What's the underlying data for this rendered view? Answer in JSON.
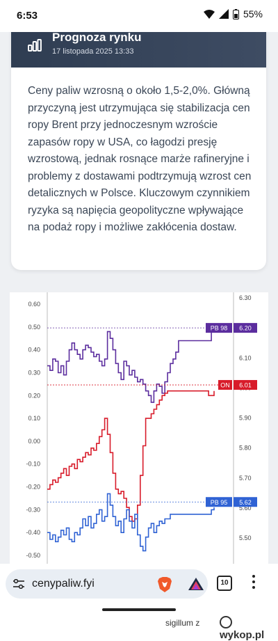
{
  "status_bar": {
    "time": "6:53",
    "battery": "55%"
  },
  "card": {
    "title": "Prognoza rynku",
    "date": "17 listopada 2025 13:33",
    "body": "Ceny paliw wzrosną o około 1,5-2,0%. Główną przyczyną jest utrzymująca się stabilizacja cen ropy Brent przy jednoczesnym wzroście zapasów ropy w USA, co łagodzi presję wzrostową, jednak rosnące marże rafineryjne i problemy z dostawami podtrzymują wzrost cen detalicznych w Polsce. Kluczowym czynnikiem ryzyka są napięcia geopolityczne wpływające na podaż ropy i możliwe zakłócenia dostaw."
  },
  "chart_data": {
    "type": "line",
    "title": "",
    "left_axis": {
      "ticks": [
        "0.60",
        "0.50",
        "0.40",
        "0.30",
        "0.20",
        "0.10",
        "0.00",
        "-0.10",
        "-0.20",
        "-0.30",
        "-0.40",
        "-0.50"
      ],
      "range": [
        -0.55,
        0.62
      ]
    },
    "right_axis": {
      "ticks": [
        "6.30",
        "6.20",
        "6.10",
        "6.00",
        "5.90",
        "5.80",
        "5.70",
        "5.60",
        "5.50"
      ],
      "range": [
        5.43,
        6.3
      ]
    },
    "grid": false,
    "series": [
      {
        "name": "PB 98",
        "current_value": "6.20",
        "color": "#5b2d9e",
        "values": [
          0.33,
          0.31,
          0.36,
          0.35,
          0.3,
          0.33,
          0.29,
          0.35,
          0.4,
          0.43,
          0.4,
          0.38,
          0.36,
          0.4,
          0.42,
          0.41,
          0.39,
          0.37,
          0.38,
          0.35,
          0.33,
          0.36,
          0.48,
          0.45,
          0.4,
          0.34,
          0.3,
          0.27,
          0.35,
          0.33,
          0.29,
          0.31,
          0.28,
          0.26,
          0.27,
          0.25,
          0.22,
          0.2,
          0.17,
          0.22,
          0.25,
          0.24,
          0.21,
          0.26,
          0.3,
          0.34,
          0.36,
          0.39,
          0.44,
          0.44,
          0.44,
          0.44,
          0.44,
          0.44,
          0.44,
          0.44,
          0.44,
          0.44,
          0.44,
          0.44,
          0.49,
          0.5
        ]
      },
      {
        "name": "ON",
        "current_value": "6.01",
        "color": "#d81b2a",
        "values": [
          -0.21,
          -0.19,
          -0.17,
          -0.18,
          -0.16,
          -0.14,
          -0.12,
          -0.15,
          -0.11,
          -0.1,
          -0.12,
          -0.08,
          -0.09,
          -0.07,
          -0.05,
          -0.06,
          -0.03,
          -0.04,
          -0.01,
          0.02,
          0.05,
          0.1,
          0.03,
          -0.05,
          -0.14,
          -0.21,
          -0.23,
          -0.22,
          -0.25,
          -0.29,
          -0.33,
          -0.35,
          -0.34,
          -0.28,
          -0.15,
          -0.02,
          0.1,
          0.1,
          0.12,
          0.14,
          0.16,
          0.18,
          0.2,
          0.21,
          0.22,
          0.22,
          0.22,
          0.22,
          0.22,
          0.22,
          0.22,
          0.22,
          0.22,
          0.22,
          0.22,
          0.22,
          0.22,
          0.22,
          0.22,
          0.2,
          0.2,
          0.22
        ]
      },
      {
        "name": "PB 95",
        "current_value": "5.62",
        "color": "#2f62d4",
        "values": [
          -0.4,
          -0.43,
          -0.41,
          -0.44,
          -0.42,
          -0.39,
          -0.41,
          -0.38,
          -0.43,
          -0.44,
          -0.4,
          -0.41,
          -0.38,
          -0.34,
          -0.37,
          -0.33,
          -0.38,
          -0.36,
          -0.32,
          -0.3,
          -0.35,
          -0.33,
          -0.23,
          -0.28,
          -0.33,
          -0.37,
          -0.35,
          -0.4,
          -0.34,
          -0.3,
          -0.35,
          -0.38,
          -0.32,
          -0.41,
          -0.46,
          -0.48,
          -0.42,
          -0.38,
          -0.36,
          -0.4,
          -0.37,
          -0.35,
          -0.36,
          -0.34,
          -0.34,
          -0.32,
          -0.32,
          -0.32,
          -0.32,
          -0.32,
          -0.32,
          -0.32,
          -0.32,
          -0.32,
          -0.32,
          -0.32,
          -0.32,
          -0.32,
          -0.32,
          -0.32,
          -0.3,
          -0.29
        ]
      }
    ]
  },
  "browser": {
    "url": "cenypaliw.fyi",
    "tab_count": "10"
  },
  "watermark": {
    "user": "sigillum",
    "sep": "z",
    "site": "wykop.pl"
  },
  "colors": {
    "card_header": "#344258",
    "pb98": "#5b2d9e",
    "on": "#d81b2a",
    "pb95": "#2f62d4"
  }
}
